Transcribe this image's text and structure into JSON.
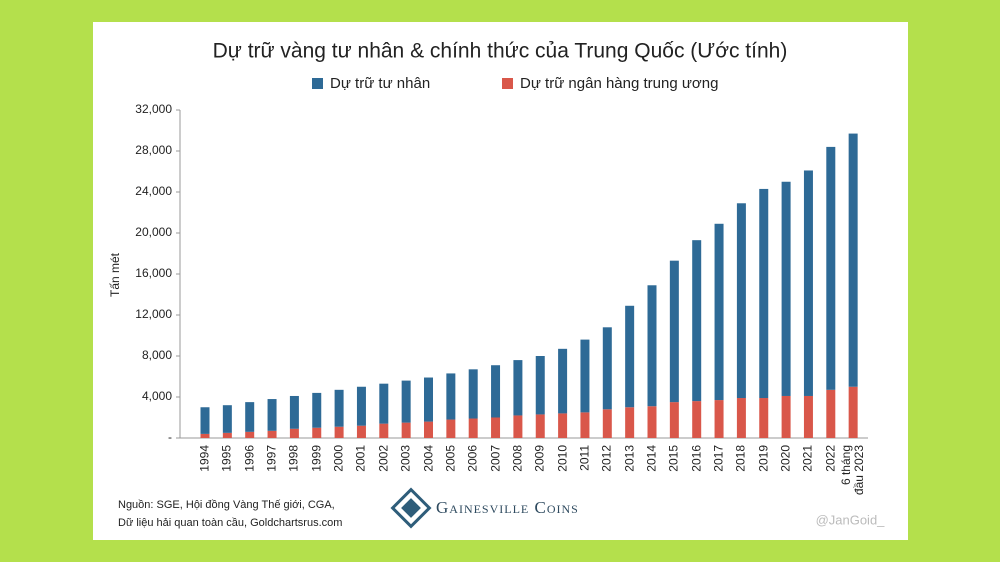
{
  "chart_data": {
    "type": "stacked_bar",
    "title": "Dự trữ vàng tư nhân & chính thức của Trung Quốc (Ước tính)",
    "y_label": "Tấn mét",
    "categories": [
      "1994",
      "1995",
      "1996",
      "1997",
      "1998",
      "1999",
      "2000",
      "2001",
      "2002",
      "2003",
      "2004",
      "2005",
      "2006",
      "2007",
      "2008",
      "2009",
      "2010",
      "2011",
      "2012",
      "2013",
      "2014",
      "2015",
      "2016",
      "2017",
      "2018",
      "2019",
      "2020",
      "2021",
      "2022",
      "6 tháng đầu 2023"
    ],
    "series": [
      {
        "name": "Dự trữ tư nhân",
        "color": "#2e6a96",
        "values": [
          2600,
          2700,
          2900,
          3100,
          3200,
          3400,
          3600,
          3800,
          3900,
          4100,
          4300,
          4500,
          4800,
          5100,
          5400,
          5700,
          6300,
          7100,
          8000,
          9900,
          11800,
          13800,
          15700,
          17200,
          19000,
          20400,
          20900,
          22000,
          23700,
          24700
        ]
      },
      {
        "name": "Dự trữ ngân hàng trung ương",
        "color": "#d9574a",
        "values": [
          400,
          500,
          600,
          700,
          900,
          1000,
          1100,
          1200,
          1400,
          1500,
          1600,
          1800,
          1900,
          2000,
          2200,
          2300,
          2400,
          2500,
          2800,
          3000,
          3100,
          3500,
          3600,
          3700,
          3900,
          3900,
          4100,
          4100,
          4700,
          5000
        ]
      }
    ],
    "ylim": [
      0,
      32000
    ],
    "yticks": [
      {
        "value": 0,
        "label": "-"
      },
      {
        "value": 4000,
        "label": "4,000"
      },
      {
        "value": 8000,
        "label": "8,000"
      },
      {
        "value": 12000,
        "label": "12,000"
      },
      {
        "value": 16000,
        "label": "16,000"
      },
      {
        "value": 20000,
        "label": "20,000"
      },
      {
        "value": 24000,
        "label": "24,000"
      },
      {
        "value": 28000,
        "label": "28,000"
      },
      {
        "value": 32000,
        "label": "32,000"
      }
    ],
    "source": [
      "Nguồn: SGE, Hội đồng Vàng Thế giới, CGA,",
      "Dữ liệu hải quan toàn cầu, Goldchartsrus.com"
    ],
    "logo_text": "Gainesville Coins",
    "watermark": "@JanGoid_"
  }
}
